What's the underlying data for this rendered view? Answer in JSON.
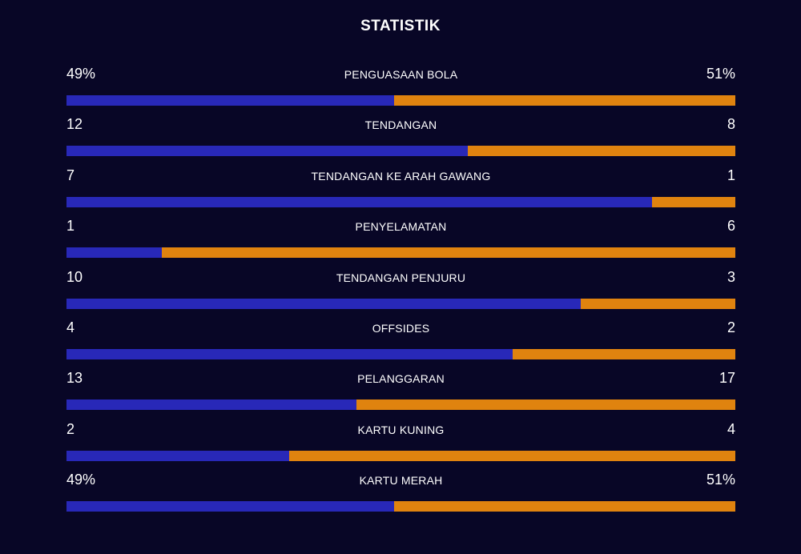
{
  "title": "STATISTIK",
  "colors": {
    "background": "#080626",
    "home": "#2828b8",
    "away": "#e0830f"
  },
  "stats": [
    {
      "label": "PENGUASAAN BOLA",
      "left": "49%",
      "right": "51%",
      "left_share": 0.49
    },
    {
      "label": "TENDANGAN",
      "left": "12",
      "right": "8",
      "left_share": 0.6
    },
    {
      "label": "TENDANGAN KE ARAH GAWANG",
      "left": "7",
      "right": "1",
      "left_share": 0.875
    },
    {
      "label": "PENYELAMATAN",
      "left": "1",
      "right": "6",
      "left_share": 0.1429
    },
    {
      "label": "TENDANGAN PENJURU",
      "left": "10",
      "right": "3",
      "left_share": 0.7692
    },
    {
      "label": "OFFSIDES",
      "left": "4",
      "right": "2",
      "left_share": 0.6667
    },
    {
      "label": "PELANGGARAN",
      "left": "13",
      "right": "17",
      "left_share": 0.4333
    },
    {
      "label": "KARTU KUNING",
      "left": "2",
      "right": "4",
      "left_share": 0.3333
    },
    {
      "label": "KARTU MERAH",
      "left": "49%",
      "right": "51%",
      "left_share": 0.49
    }
  ]
}
